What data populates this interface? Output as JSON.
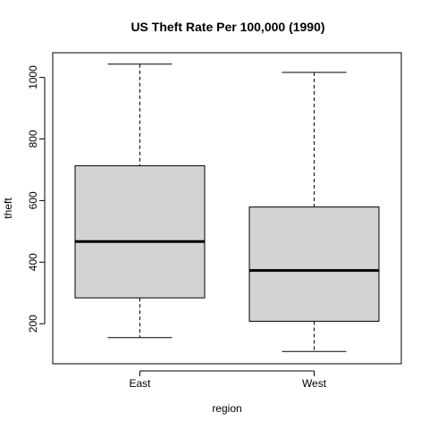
{
  "chart_data": {
    "type": "boxplot",
    "title": "US Theft Rate Per 100,000 (1990)",
    "xlabel": "region",
    "ylabel": "theft",
    "ylim": [
      70,
      1080
    ],
    "yticks": [
      200,
      400,
      600,
      800,
      1000
    ],
    "categories": [
      "East",
      "West"
    ],
    "boxes": [
      {
        "category": "East",
        "whisker_low": 155,
        "q1": 284,
        "median": 467,
        "q3": 713,
        "whisker_high": 1043
      },
      {
        "category": "West",
        "whisker_low": 110,
        "q1": 208,
        "median": 373,
        "q3": 579,
        "whisker_high": 1016
      }
    ],
    "colors": {
      "box_fill": "#d3d3d3",
      "stroke": "#000000"
    }
  }
}
